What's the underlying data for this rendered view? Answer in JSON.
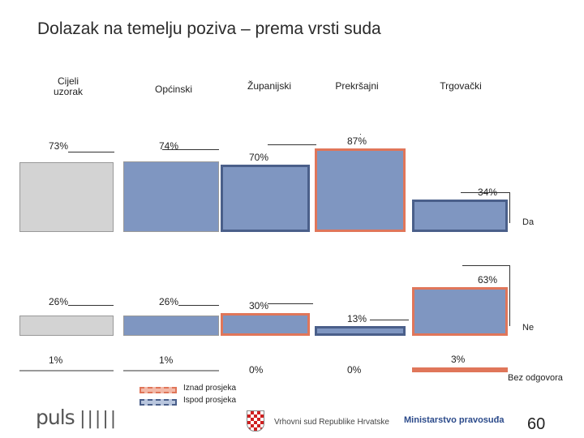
{
  "title": "Dolazak na temelju poziva – prema vrsti suda",
  "colors": {
    "sample": "#d3d3d3",
    "court": "#7f96c1",
    "above_border": "#e0765a",
    "below_border": "#4a5f8a",
    "line": "#333333"
  },
  "chart_data": {
    "type": "bar",
    "title": "Dolazak na temelju poziva – prema vrsti suda",
    "categories": [
      "Cijeli uzorak",
      "Općinski",
      "Županijski",
      "Prekršajni",
      "Trgovački"
    ],
    "series": [
      {
        "name": "Da",
        "values": [
          73,
          74,
          70,
          87,
          34
        ]
      },
      {
        "name": "Ne",
        "values": [
          26,
          26,
          30,
          13,
          63
        ]
      },
      {
        "name": "Bez odgovora",
        "values": [
          1,
          1,
          0,
          0,
          3
        ]
      }
    ],
    "value_labels": {
      "Da": [
        "73%",
        "74%",
        "70%",
        "87%",
        "34%"
      ],
      "Ne": [
        "26%",
        "26%",
        "30%",
        "13%",
        "63%"
      ],
      "Bez odgovora": [
        "1%",
        "1%",
        "0%",
        "0%",
        "3%"
      ]
    },
    "highlight": {
      "Da": [
        "none",
        "none",
        "below",
        "above",
        "below"
      ],
      "Ne": [
        "none",
        "none",
        "above",
        "below",
        "above"
      ],
      "Bez odgovora": [
        "none",
        "none",
        "none",
        "none",
        "above"
      ]
    },
    "ylim": [
      0,
      100
    ]
  },
  "legend": {
    "above": "Iznad prosjeka",
    "below": "Ispod prosjeka"
  },
  "footer": {
    "brand": "puls",
    "court": "Vrhovni sud Republike Hrvatske",
    "ministry": "Ministarstvo pravosuđa",
    "page": "60"
  }
}
